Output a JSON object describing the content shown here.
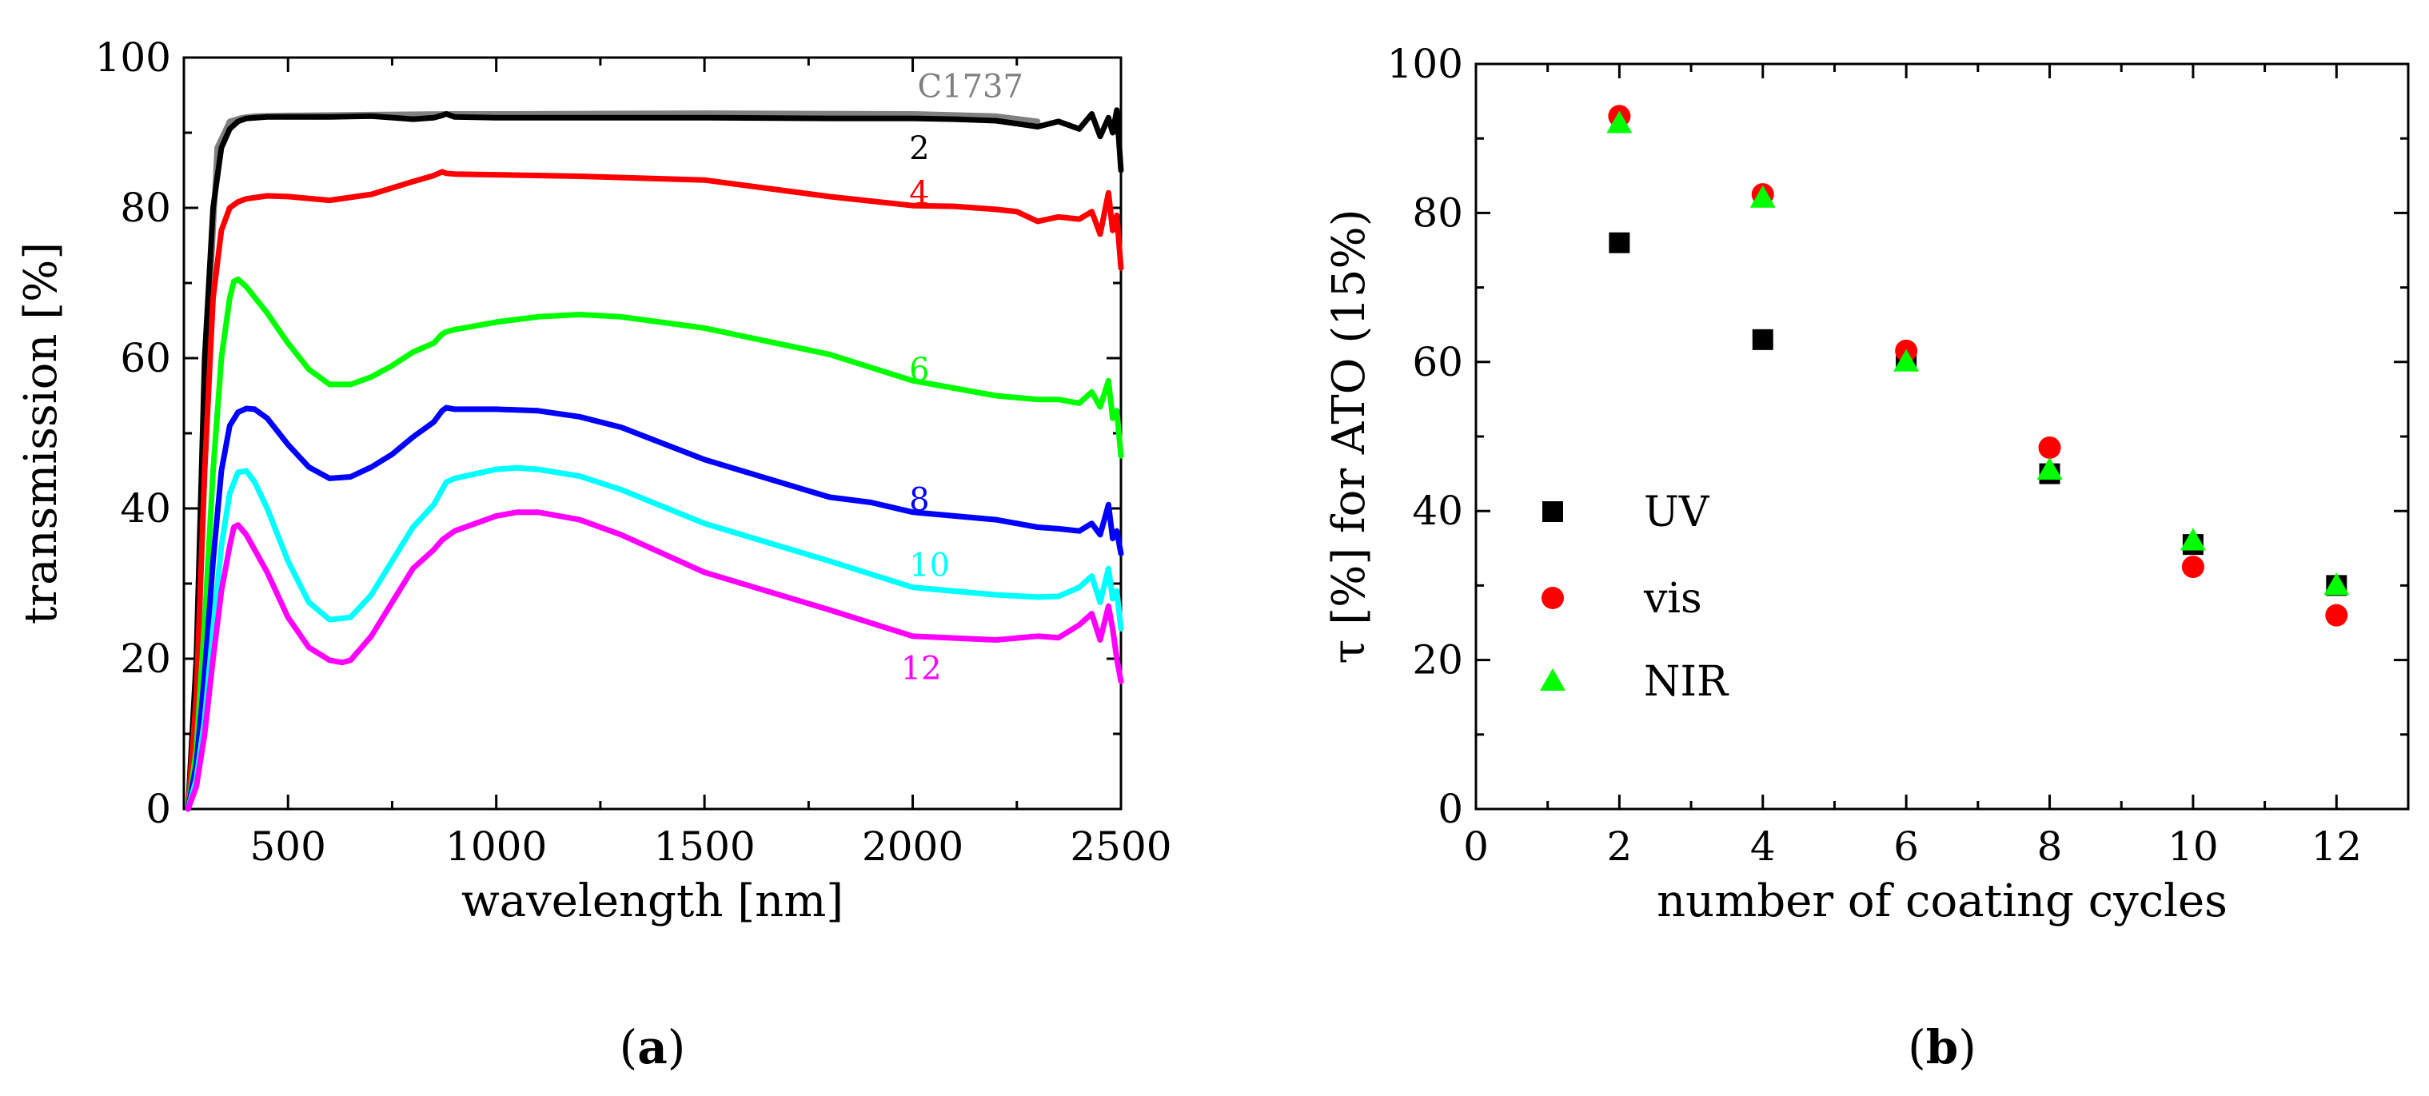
{
  "chart_data": [
    {
      "type": "line",
      "panel_label": "a",
      "xlabel": "wavelength [nm]",
      "ylabel": "transmission [%]",
      "xlim": [
        250,
        2500
      ],
      "ylim": [
        0,
        100
      ],
      "xticks": [
        500,
        1000,
        1500,
        2000,
        2500
      ],
      "yticks": [
        0,
        20,
        40,
        60,
        80,
        100
      ],
      "grid": false,
      "series": [
        {
          "name": "C1737",
          "color": "#808080",
          "x": [
            300,
            330,
            360,
            390,
            420,
            500,
            700,
            900,
            1000,
            1500,
            2000,
            2200,
            2300
          ],
          "y": [
            55,
            88,
            91.5,
            92,
            92.2,
            92.3,
            92.4,
            92.5,
            92.5,
            92.6,
            92.5,
            92.2,
            91.5
          ]
        },
        {
          "name": "2",
          "color": "#000000",
          "x": [
            260,
            280,
            300,
            320,
            340,
            360,
            380,
            400,
            450,
            500,
            600,
            700,
            800,
            850,
            870,
            880,
            900,
            1000,
            1200,
            1500,
            1800,
            2000,
            2100,
            2200,
            2250,
            2300,
            2350,
            2400,
            2430,
            2450,
            2470,
            2480,
            2490,
            2500
          ],
          "y": [
            0,
            20,
            60,
            80,
            88,
            90.5,
            91.5,
            91.9,
            92.1,
            92.1,
            92.1,
            92.2,
            91.8,
            92,
            92.3,
            92.5,
            92.1,
            92,
            92,
            92,
            91.9,
            91.9,
            91.8,
            91.6,
            91.2,
            90.8,
            91.5,
            90.5,
            92.5,
            89.5,
            92,
            90,
            93,
            85
          ]
        },
        {
          "name": "4",
          "color": "#ff0000",
          "x": [
            260,
            280,
            300,
            320,
            340,
            360,
            380,
            400,
            450,
            500,
            600,
            700,
            800,
            850,
            870,
            880,
            900,
            1000,
            1200,
            1500,
            1800,
            2000,
            2100,
            2200,
            2250,
            2300,
            2350,
            2400,
            2430,
            2450,
            2470,
            2480,
            2490,
            2500
          ],
          "y": [
            0,
            15,
            45,
            68,
            77,
            80,
            80.8,
            81.2,
            81.6,
            81.5,
            81,
            81.8,
            83.5,
            84.3,
            84.8,
            84.6,
            84.5,
            84.4,
            84.2,
            83.7,
            81.5,
            80.3,
            80.2,
            79.8,
            79.5,
            78.2,
            78.8,
            78.5,
            79.5,
            76.5,
            82,
            77,
            79,
            72
          ]
        },
        {
          "name": "6",
          "color": "#00ff00",
          "x": [
            260,
            280,
            300,
            320,
            340,
            360,
            370,
            380,
            400,
            450,
            500,
            550,
            600,
            650,
            700,
            750,
            800,
            850,
            870,
            880,
            900,
            1000,
            1100,
            1200,
            1300,
            1500,
            1800,
            2000,
            2200,
            2300,
            2350,
            2400,
            2430,
            2450,
            2470,
            2480,
            2490,
            2500
          ],
          "y": [
            0,
            8,
            25,
            45,
            60,
            68,
            70.2,
            70.5,
            69.5,
            66,
            62,
            58.5,
            56.5,
            56.5,
            57.5,
            59,
            60.8,
            62,
            63.2,
            63.5,
            63.8,
            64.8,
            65.5,
            65.8,
            65.5,
            64,
            60.5,
            57,
            55,
            54.5,
            54.5,
            54,
            55.5,
            53.5,
            57,
            52,
            53,
            47
          ]
        },
        {
          "name": "8",
          "color": "#0000ff",
          "x": [
            260,
            280,
            300,
            320,
            340,
            360,
            380,
            400,
            420,
            450,
            500,
            550,
            600,
            650,
            700,
            750,
            800,
            850,
            870,
            880,
            900,
            1000,
            1100,
            1200,
            1300,
            1500,
            1800,
            1900,
            2000,
            2200,
            2300,
            2350,
            2400,
            2430,
            2450,
            2470,
            2480,
            2490,
            2500
          ],
          "y": [
            0,
            6,
            18,
            33,
            45,
            51,
            52.8,
            53.3,
            53.2,
            52,
            48.5,
            45.5,
            44,
            44.2,
            45.5,
            47.2,
            49.5,
            51.5,
            53,
            53.4,
            53.2,
            53.2,
            53,
            52.2,
            50.8,
            46.5,
            41.5,
            40.8,
            39.5,
            38.5,
            37.5,
            37.3,
            37,
            38,
            36.5,
            40.5,
            36,
            37,
            34
          ]
        },
        {
          "name": "10",
          "color": "#00ffff",
          "x": [
            260,
            280,
            300,
            320,
            340,
            360,
            380,
            400,
            420,
            450,
            500,
            550,
            600,
            650,
            700,
            750,
            800,
            850,
            870,
            880,
            900,
            1000,
            1050,
            1100,
            1200,
            1300,
            1500,
            1800,
            2000,
            2200,
            2300,
            2350,
            2400,
            2430,
            2450,
            2470,
            2480,
            2490,
            2500
          ],
          "y": [
            0,
            4,
            12,
            24,
            35,
            42,
            44.8,
            45,
            43.5,
            40,
            33,
            27.5,
            25.2,
            25.5,
            28.5,
            33,
            37.5,
            40.5,
            42.5,
            43.5,
            44,
            45.2,
            45.4,
            45.2,
            44.3,
            42.5,
            38,
            33,
            29.5,
            28.5,
            28.2,
            28.3,
            29.5,
            31,
            27.5,
            32,
            28,
            29,
            24
          ]
        },
        {
          "name": "12",
          "color": "#ff00ff",
          "x": [
            260,
            280,
            300,
            320,
            340,
            360,
            370,
            380,
            400,
            450,
            500,
            550,
            600,
            630,
            650,
            700,
            750,
            800,
            850,
            870,
            880,
            900,
            1000,
            1050,
            1100,
            1200,
            1300,
            1500,
            1800,
            2000,
            2200,
            2300,
            2350,
            2400,
            2430,
            2450,
            2470,
            2480,
            2490,
            2500
          ],
          "y": [
            0,
            3,
            10,
            20,
            29,
            35,
            37.5,
            37.8,
            36.5,
            31.5,
            25.5,
            21.5,
            19.8,
            19.5,
            19.8,
            23,
            27.5,
            32,
            34.5,
            35.8,
            36.2,
            37,
            39,
            39.5,
            39.5,
            38.5,
            36.5,
            31.5,
            26.5,
            23,
            22.5,
            23,
            22.8,
            24.5,
            26,
            22.5,
            27,
            24,
            20,
            17
          ]
        }
      ],
      "curve_labels": [
        {
          "text": "C1737",
          "x": 2000,
          "y": 96.2,
          "color": "#808080"
        },
        {
          "text": "2",
          "x": 1980,
          "y": 88,
          "color": "#000000"
        },
        {
          "text": "4",
          "x": 1980,
          "y": 82,
          "color": "#ff0000"
        },
        {
          "text": "6",
          "x": 1980,
          "y": 58.5,
          "color": "#00ff00"
        },
        {
          "text": "8",
          "x": 1980,
          "y": 41.2,
          "color": "#0000ff"
        },
        {
          "text": "10",
          "x": 1980,
          "y": 32.5,
          "color": "#00ffff"
        },
        {
          "text": "12",
          "x": 1960,
          "y": 18.8,
          "color": "#ff00ff"
        }
      ]
    },
    {
      "type": "scatter",
      "panel_label": "b",
      "xlabel": "number of coating cycles",
      "ylabel": "τ [%] for ATO (15%)",
      "xlim": [
        0,
        13
      ],
      "ylim": [
        0,
        100
      ],
      "xticks": [
        0,
        2,
        4,
        6,
        8,
        10,
        12
      ],
      "yticks": [
        0,
        20,
        40,
        60,
        80,
        100
      ],
      "grid": false,
      "legend_position": "bottom-left",
      "series": [
        {
          "name": "UV",
          "marker": "square",
          "color": "#000000",
          "x": [
            2,
            4,
            6,
            8,
            10,
            12
          ],
          "y": [
            76,
            63,
            60.5,
            45,
            35.5,
            30
          ]
        },
        {
          "name": "vis",
          "marker": "circle",
          "color": "#ff0000",
          "x": [
            2,
            4,
            6,
            8,
            10,
            12
          ],
          "y": [
            93,
            82.5,
            61.5,
            48.5,
            32.5,
            26
          ]
        },
        {
          "name": "NIR",
          "marker": "triangle",
          "color": "#00ff00",
          "x": [
            2,
            4,
            6,
            8,
            10,
            12
          ],
          "y": [
            92,
            82,
            60,
            45.5,
            36,
            30
          ]
        }
      ]
    }
  ]
}
